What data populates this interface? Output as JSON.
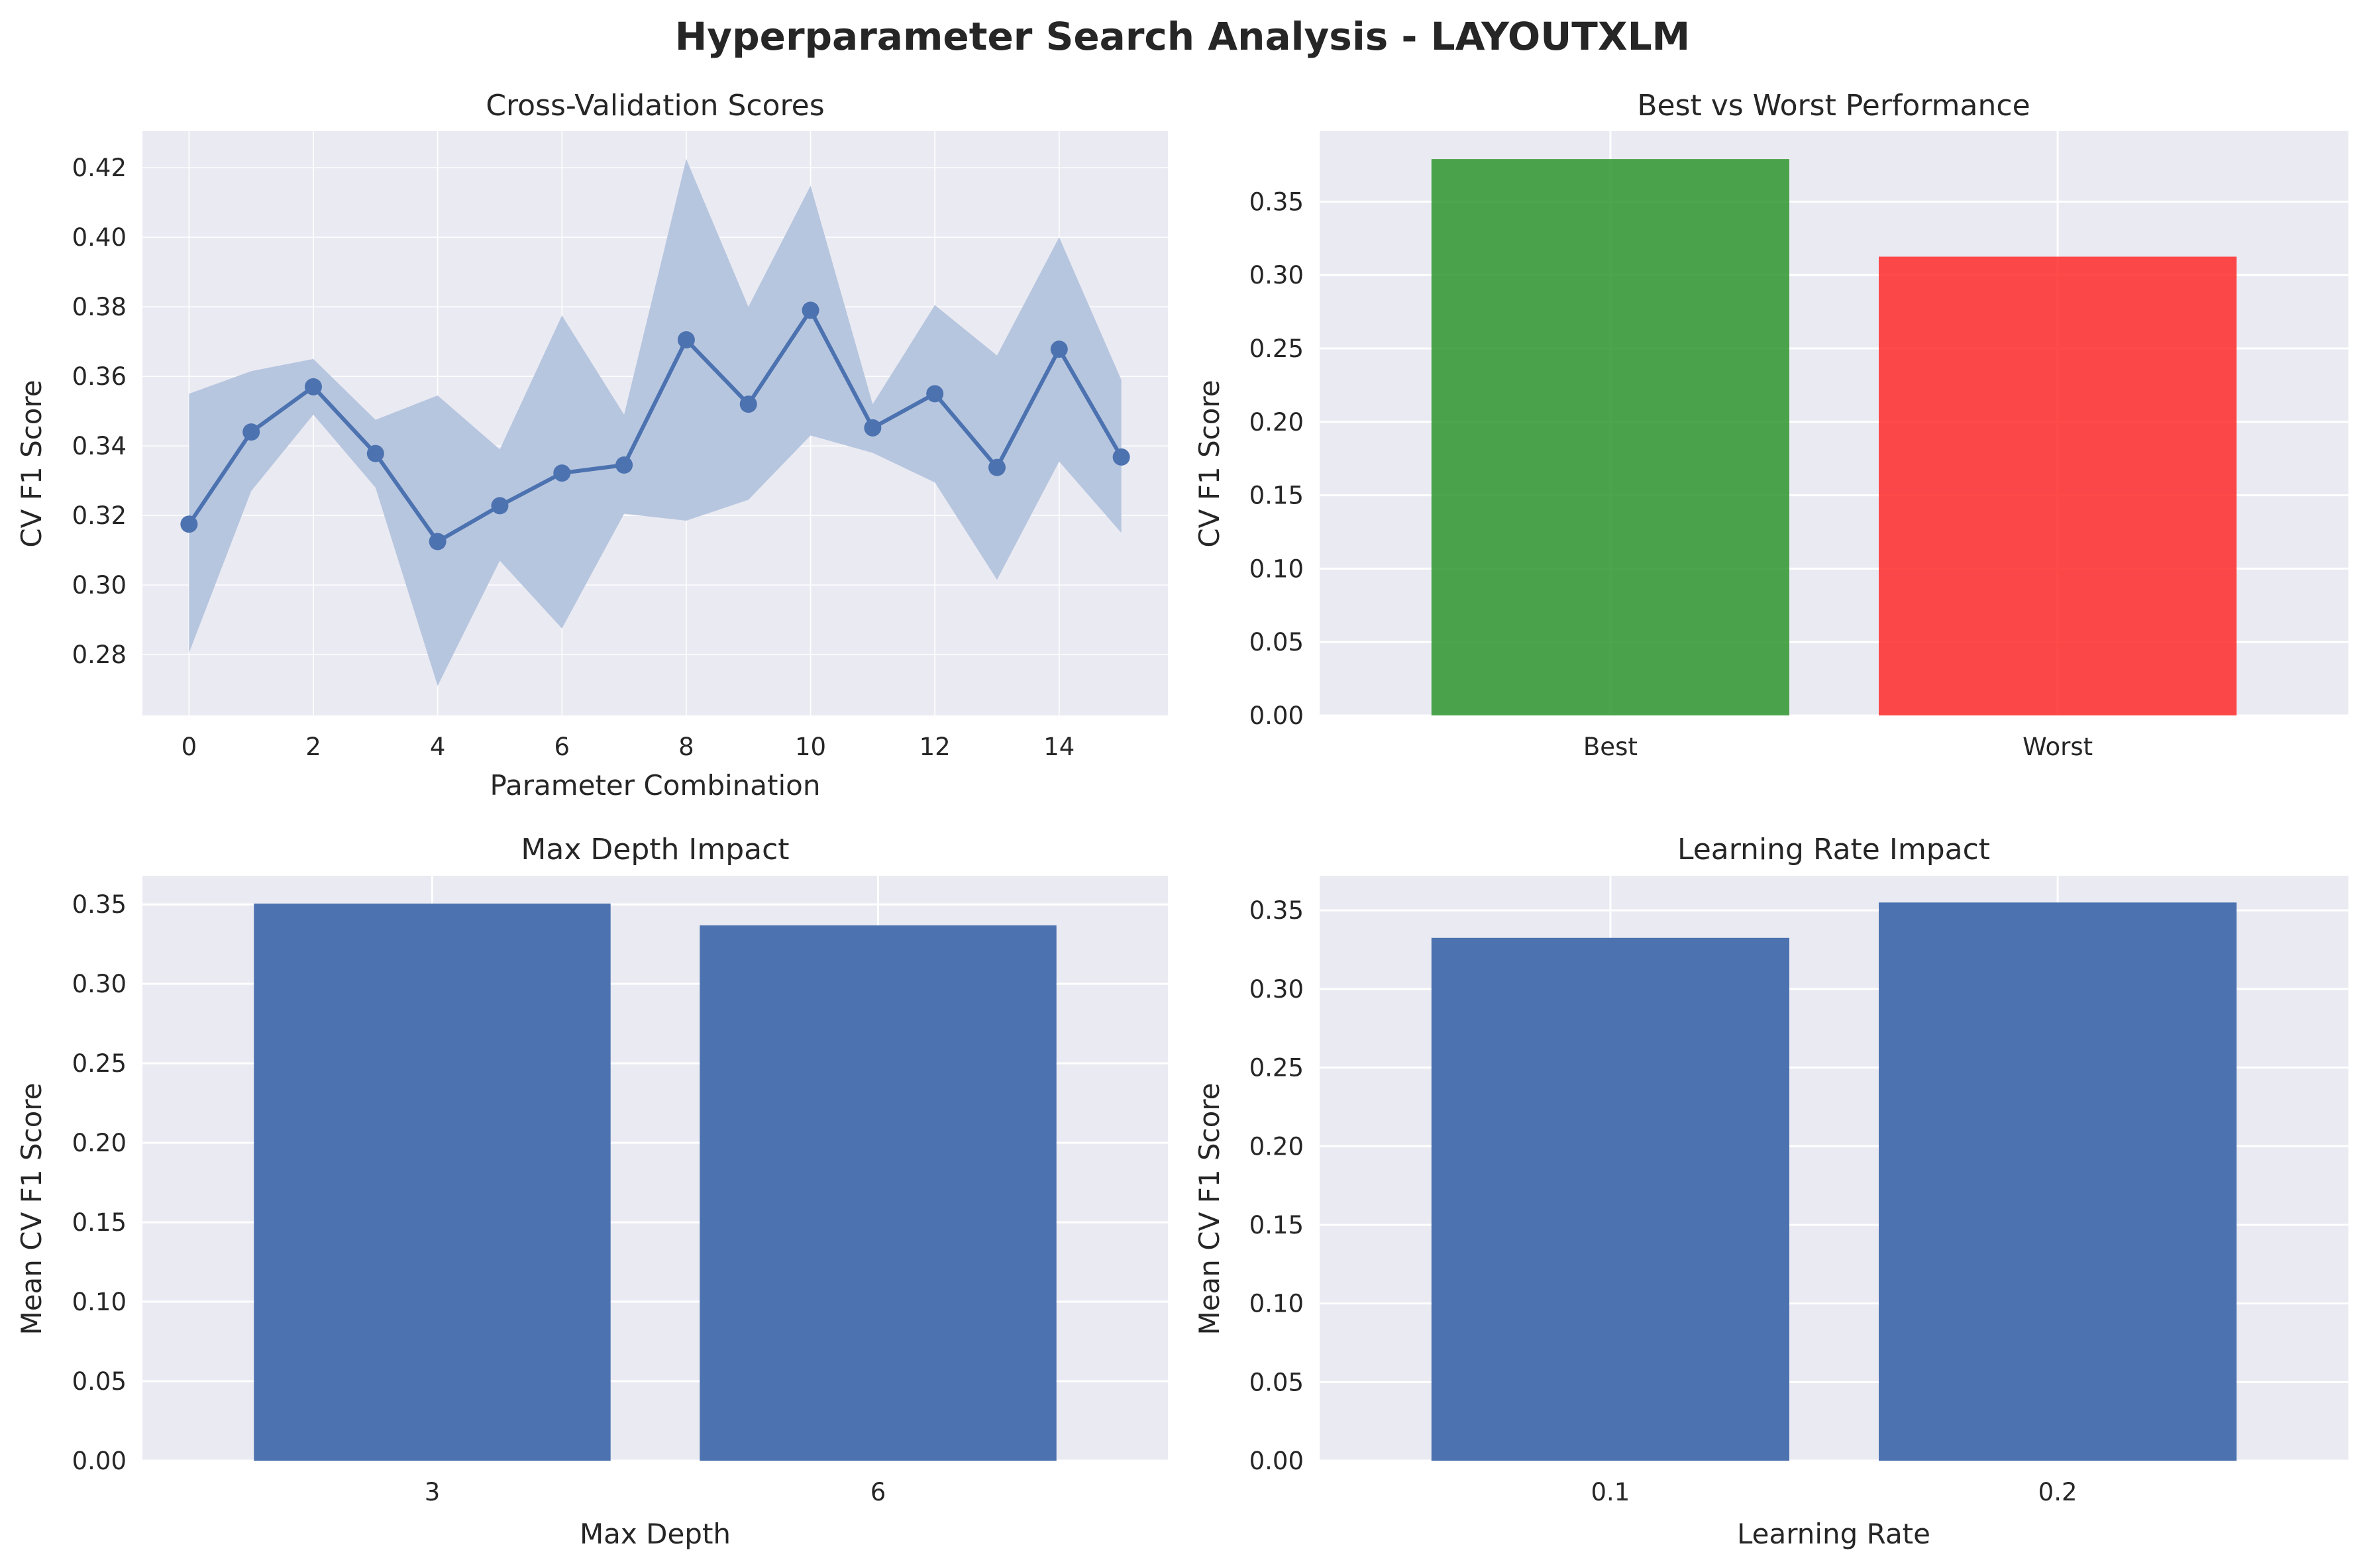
{
  "figure": {
    "title": "Hyperparameter Search Analysis - LAYOUTXLM"
  },
  "colors": {
    "panel_bg": "#eaeaf2",
    "grid": "#ffffff",
    "series": "#4c72b0",
    "band": "#b7c6df",
    "best": "#2e962e",
    "worst": "#ff2a2a",
    "text": "#262626"
  },
  "chart_data": [
    {
      "id": "cv",
      "type": "line",
      "title": "Cross-Validation Scores",
      "xlabel": "Parameter Combination",
      "ylabel": "CV F1 Score",
      "x": [
        0,
        1,
        2,
        3,
        4,
        5,
        6,
        7,
        8,
        9,
        10,
        11,
        12,
        13,
        14,
        15
      ],
      "series": [
        {
          "values": [
            0.3175,
            0.344,
            0.357,
            0.3378,
            0.3125,
            0.3228,
            0.3322,
            0.3345,
            0.3705,
            0.352,
            0.379,
            0.3452,
            0.355,
            0.3338,
            0.3678,
            0.3368
          ],
          "upper": [
            0.355,
            0.3615,
            0.365,
            0.3475,
            0.3545,
            0.339,
            0.3775,
            0.349,
            0.4225,
            0.38,
            0.4148,
            0.352,
            0.3805,
            0.366,
            0.4,
            0.359
          ],
          "lower": [
            0.2805,
            0.327,
            0.349,
            0.328,
            0.271,
            0.307,
            0.2875,
            0.3205,
            0.3185,
            0.3245,
            0.343,
            0.338,
            0.3295,
            0.3015,
            0.3355,
            0.315
          ]
        }
      ],
      "xlim": [
        -0.75,
        15.75
      ],
      "ylim": [
        0.2625,
        0.4305
      ],
      "xticks": [
        0,
        2,
        4,
        6,
        8,
        10,
        12,
        14
      ],
      "xtick_labels": [
        "0",
        "2",
        "4",
        "6",
        "8",
        "10",
        "12",
        "14"
      ],
      "yticks": [
        0.28,
        0.3,
        0.32,
        0.34,
        0.36,
        0.38,
        0.4,
        0.42
      ],
      "ytick_labels": [
        "0.28",
        "0.30",
        "0.32",
        "0.34",
        "0.36",
        "0.38",
        "0.40",
        "0.42"
      ],
      "grid": true
    },
    {
      "id": "bestworst",
      "type": "bar",
      "title": "Best vs Worst Performance",
      "xlabel": "",
      "ylabel": "CV F1 Score",
      "categories": [
        "Best",
        "Worst"
      ],
      "values": [
        0.379,
        0.3125
      ],
      "bar_colors": [
        "#2e962e",
        "#ff2a2a"
      ],
      "ylim": [
        0,
        0.398
      ],
      "yticks": [
        0,
        0.05,
        0.1,
        0.15,
        0.2,
        0.25,
        0.3,
        0.35
      ],
      "ytick_labels": [
        "0.00",
        "0.05",
        "0.10",
        "0.15",
        "0.20",
        "0.25",
        "0.30",
        "0.35"
      ],
      "grid": true
    },
    {
      "id": "depth",
      "type": "bar",
      "title": "Max Depth Impact",
      "xlabel": "Max Depth",
      "ylabel": "Mean CV F1 Score",
      "categories": [
        "3",
        "6"
      ],
      "values": [
        0.3505,
        0.3368
      ],
      "bar_colors": [
        "#4c72b0",
        "#4c72b0"
      ],
      "ylim": [
        0,
        0.368
      ],
      "yticks": [
        0,
        0.05,
        0.1,
        0.15,
        0.2,
        0.25,
        0.3,
        0.35
      ],
      "ytick_labels": [
        "0.00",
        "0.05",
        "0.10",
        "0.15",
        "0.20",
        "0.25",
        "0.30",
        "0.35"
      ],
      "grid": true
    },
    {
      "id": "lr",
      "type": "bar",
      "title": "Learning Rate Impact",
      "xlabel": "Learning Rate",
      "ylabel": "Mean CV F1 Score",
      "categories": [
        "0.1",
        "0.2"
      ],
      "values": [
        0.3325,
        0.355
      ],
      "bar_colors": [
        "#4c72b0",
        "#4c72b0"
      ],
      "ylim": [
        0,
        0.372
      ],
      "yticks": [
        0,
        0.05,
        0.1,
        0.15,
        0.2,
        0.25,
        0.3,
        0.35
      ],
      "ytick_labels": [
        "0.00",
        "0.05",
        "0.10",
        "0.15",
        "0.20",
        "0.25",
        "0.30",
        "0.35"
      ],
      "grid": true
    }
  ]
}
